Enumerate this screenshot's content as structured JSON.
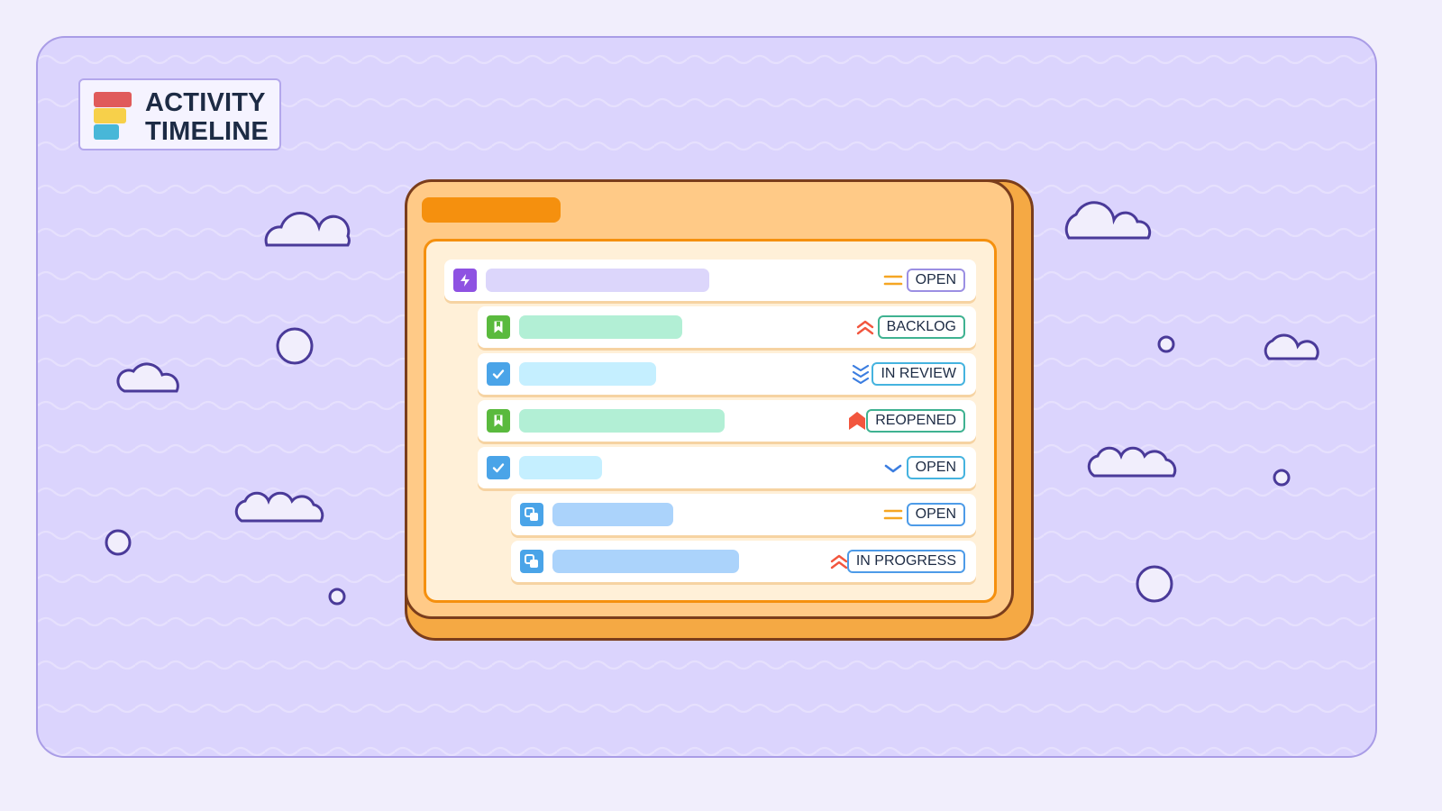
{
  "logo": {
    "line1": "ACTIVITY",
    "line2": "TIMELINE"
  },
  "colors": {
    "background": "#dbd4fd",
    "window": "#ffca87",
    "accent": "#f5900e",
    "outline": "#4a3a99"
  },
  "rows": [
    {
      "type_icon": "epic-lightning-icon",
      "icon_color": "#8e52e2",
      "bar_color": "#dcd6fb",
      "priority_icon": "priority-medium-icon",
      "status": "OPEN",
      "badge_color": "#9b8fe3"
    },
    {
      "type_icon": "story-bookmark-icon",
      "icon_color": "#5aba3e",
      "bar_color": "#b2efd5",
      "priority_icon": "priority-high-icon",
      "status": "BACKLOG",
      "badge_color": "#3fb291"
    },
    {
      "type_icon": "task-check-icon",
      "icon_color": "#4aa4e8",
      "bar_color": "#c5efff",
      "priority_icon": "priority-lowest-icon",
      "status": "IN REVIEW",
      "badge_color": "#45b3df"
    },
    {
      "type_icon": "story-bookmark-icon",
      "icon_color": "#5aba3e",
      "bar_color": "#b2efd5",
      "priority_icon": "priority-critical-icon",
      "status": "REOPENED",
      "badge_color": "#3fb291"
    },
    {
      "type_icon": "task-check-icon",
      "icon_color": "#4aa4e8",
      "bar_color": "#c5efff",
      "priority_icon": "priority-low-icon",
      "status": "OPEN",
      "badge_color": "#45b3df"
    },
    {
      "type_icon": "subtask-icon",
      "icon_color": "#4aa4e8",
      "bar_color": "#abd3fb",
      "priority_icon": "priority-medium-icon",
      "status": "OPEN",
      "badge_color": "#4d9be8"
    },
    {
      "type_icon": "subtask-icon",
      "icon_color": "#4aa4e8",
      "bar_color": "#abd3fb",
      "priority_icon": "priority-high-icon",
      "status": "IN PROGRESS",
      "badge_color": "#4d9be8"
    }
  ]
}
